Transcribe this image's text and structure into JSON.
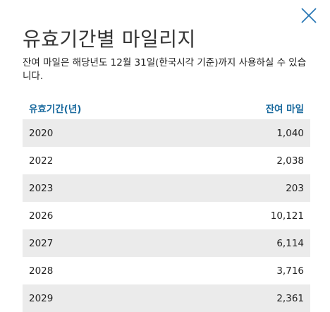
{
  "dialog": {
    "title": "유효기간별 마일리지",
    "description": "잔여 마일은 해당년도 12월 31일(한국시각 기준)까지 사용하실 수 있습니다.",
    "table": {
      "header": [
        "유효기간(년)",
        "잔여 마일"
      ],
      "rows": [
        [
          "2020",
          "1,040"
        ],
        [
          "2022",
          "2,038"
        ],
        [
          "2023",
          "203"
        ],
        [
          "2026",
          "10,121"
        ],
        [
          "2027",
          "6,114"
        ],
        [
          "2028",
          "3,716"
        ],
        [
          "2029",
          "2,361"
        ]
      ]
    }
  }
}
